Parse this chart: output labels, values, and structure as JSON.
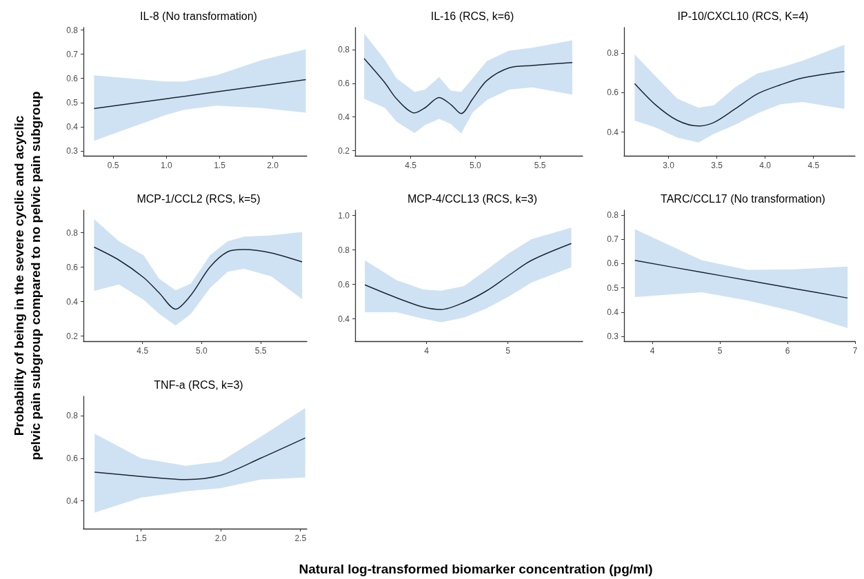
{
  "chart_data": [
    {
      "type": "line",
      "title": "IL-8 (No transformation)",
      "marker": "none",
      "grid": false,
      "xlim": [
        0.22,
        2.32
      ],
      "xticks": [
        0.5,
        {
          "value": 1,
          "label": "1.0"
        },
        1.5,
        {
          "value": 2,
          "label": "2.0"
        }
      ],
      "ylim": [
        0.28,
        0.81
      ],
      "yticks": [
        0.3,
        0.4,
        0.5,
        0.6,
        0.7,
        0.8
      ],
      "series": [
        {
          "color": "#1a2333",
          "x": [
            0.32,
            0.99,
            1.17,
            1.47,
            1.9,
            2.31
          ],
          "values": [
            0.475,
            0.515,
            0.526,
            0.544,
            0.57,
            0.595
          ],
          "lower": [
            0.342,
            0.448,
            0.47,
            0.487,
            0.477,
            0.458
          ],
          "upper": [
            0.613,
            0.587,
            0.587,
            0.613,
            0.676,
            0.72
          ]
        }
      ]
    },
    {
      "type": "line",
      "title": "IL-16 (RCS, k=6)",
      "marker": "none",
      "grid": false,
      "xlim": [
        4.07,
        5.83
      ],
      "xticks": [
        4.5,
        {
          "value": 5,
          "label": "5.0"
        },
        5.5
      ],
      "ylim": [
        0.17,
        0.93
      ],
      "yticks": [
        0.2,
        0.4,
        0.6,
        0.8
      ],
      "series": [
        {
          "color": "#1a2333",
          "x": [
            4.14,
            4.3,
            4.39,
            4.53,
            4.61,
            4.72,
            4.81,
            4.89,
            4.98,
            5.09,
            5.26,
            5.44,
            5.75
          ],
          "values": [
            0.746,
            0.603,
            0.508,
            0.424,
            0.454,
            0.515,
            0.474,
            0.42,
            0.508,
            0.617,
            0.691,
            0.705,
            0.723
          ],
          "lower": [
            0.508,
            0.454,
            0.372,
            0.305,
            0.352,
            0.389,
            0.359,
            0.302,
            0.427,
            0.501,
            0.562,
            0.576,
            0.533
          ],
          "upper": [
            0.895,
            0.739,
            0.63,
            0.549,
            0.562,
            0.637,
            0.556,
            0.549,
            0.63,
            0.732,
            0.793,
            0.81,
            0.854
          ]
        }
      ]
    },
    {
      "type": "line",
      "title": "IP-10/CXCL10 (RCS, K=4)",
      "marker": "none",
      "grid": false,
      "xlim": [
        2.54,
        4.93
      ],
      "xticks": [
        {
          "value": 3,
          "label": "3.0"
        },
        3.5,
        {
          "value": 4,
          "label": "4.0"
        },
        4.5
      ],
      "ylim": [
        0.28,
        0.93
      ],
      "yticks": [
        0.4,
        0.6,
        0.8
      ],
      "series": [
        {
          "color": "#1a2333",
          "x": [
            2.65,
            2.86,
            3.09,
            3.31,
            3.47,
            3.69,
            3.92,
            4.16,
            4.39,
            4.82
          ],
          "values": [
            0.646,
            0.541,
            0.46,
            0.431,
            0.449,
            0.518,
            0.594,
            0.64,
            0.675,
            0.707
          ],
          "lower": [
            0.458,
            0.425,
            0.373,
            0.347,
            0.391,
            0.437,
            0.495,
            0.541,
            0.553,
            0.518
          ],
          "upper": [
            0.794,
            0.686,
            0.57,
            0.524,
            0.536,
            0.628,
            0.698,
            0.727,
            0.762,
            0.843
          ]
        }
      ]
    },
    {
      "type": "line",
      "title": "MCP-1/CCL2 (RCS, k=5)",
      "marker": "none",
      "grid": false,
      "ylabel": "Probability of being in the severe cyclic and acyclic\npelvic pain subgroup compared to no pelvic pain subgroup",
      "xlim": [
        4.0,
        5.89
      ],
      "xticks": [
        4.5,
        {
          "value": 5,
          "label": "5.0"
        },
        5.5
      ],
      "ylim": [
        0.17,
        0.93
      ],
      "yticks": [
        0.2,
        0.4,
        0.6,
        0.8
      ],
      "series": [
        {
          "color": "#1a2333",
          "x": [
            4.09,
            4.3,
            4.51,
            4.64,
            4.78,
            4.91,
            5.07,
            5.22,
            5.36,
            5.59,
            5.85
          ],
          "values": [
            0.716,
            0.641,
            0.539,
            0.451,
            0.356,
            0.438,
            0.6,
            0.689,
            0.702,
            0.682,
            0.63
          ],
          "lower": [
            0.462,
            0.499,
            0.41,
            0.329,
            0.261,
            0.329,
            0.478,
            0.573,
            0.59,
            0.546,
            0.414
          ],
          "upper": [
            0.879,
            0.75,
            0.668,
            0.533,
            0.465,
            0.505,
            0.668,
            0.75,
            0.777,
            0.784,
            0.804
          ]
        }
      ]
    },
    {
      "type": "line",
      "title": "MCP-4/CCL13 (RCS, k=3)",
      "marker": "none",
      "grid": false,
      "xlim": [
        3.12,
        5.92
      ],
      "xticks": [
        4,
        5
      ],
      "ylim": [
        0.27,
        1.03
      ],
      "yticks": [
        0.4,
        0.6,
        0.8,
        {
          "value": 1,
          "label": "1.0"
        }
      ],
      "series": [
        {
          "color": "#1a2333",
          "x": [
            3.24,
            3.63,
            3.96,
            4.18,
            4.46,
            4.74,
            5.01,
            5.29,
            5.78
          ],
          "values": [
            0.597,
            0.522,
            0.468,
            0.454,
            0.495,
            0.563,
            0.651,
            0.739,
            0.837
          ],
          "lower": [
            0.438,
            0.438,
            0.4,
            0.38,
            0.407,
            0.461,
            0.529,
            0.61,
            0.699
          ],
          "upper": [
            0.739,
            0.624,
            0.57,
            0.563,
            0.59,
            0.685,
            0.78,
            0.862,
            0.929
          ]
        }
      ]
    },
    {
      "type": "line",
      "title": "TARC/CCL17 (No transformation)",
      "marker": "none",
      "grid": false,
      "xlim": [
        3.58,
        7.0
      ],
      "xticks": [
        4,
        5,
        6,
        7
      ],
      "ylim": [
        0.28,
        0.82
      ],
      "yticks": [
        0.3,
        0.4,
        0.5,
        0.6,
        0.7,
        0.8
      ],
      "series": [
        {
          "color": "#1a2333",
          "x": [
            3.74,
            4.73,
            5.41,
            6.1,
            6.89
          ],
          "values": [
            0.613,
            0.564,
            0.531,
            0.497,
            0.458
          ],
          "lower": [
            0.462,
            0.482,
            0.448,
            0.402,
            0.334
          ],
          "upper": [
            0.742,
            0.614,
            0.574,
            0.576,
            0.588
          ]
        }
      ]
    },
    {
      "type": "line",
      "title": "TNF-a (RCS, k=3)",
      "marker": "none",
      "grid": false,
      "xlabel": "Natural log-transformed biomarker concentration (pg/ml)",
      "xlim": [
        1.14,
        2.54
      ],
      "xticks": [
        1.5,
        {
          "value": 2,
          "label": "2.0"
        },
        2.5
      ],
      "ylim": [
        0.27,
        0.89
      ],
      "yticks": [
        0.4,
        0.6,
        0.8
      ],
      "series": [
        {
          "color": "#1a2333",
          "x": [
            1.21,
            1.5,
            1.78,
            2.0,
            2.25,
            2.53
          ],
          "values": [
            0.535,
            0.515,
            0.5,
            0.52,
            0.6,
            0.695
          ],
          "lower": [
            0.345,
            0.415,
            0.445,
            0.46,
            0.5,
            0.51
          ],
          "upper": [
            0.715,
            0.6,
            0.565,
            0.585,
            0.7,
            0.835
          ]
        }
      ]
    }
  ]
}
